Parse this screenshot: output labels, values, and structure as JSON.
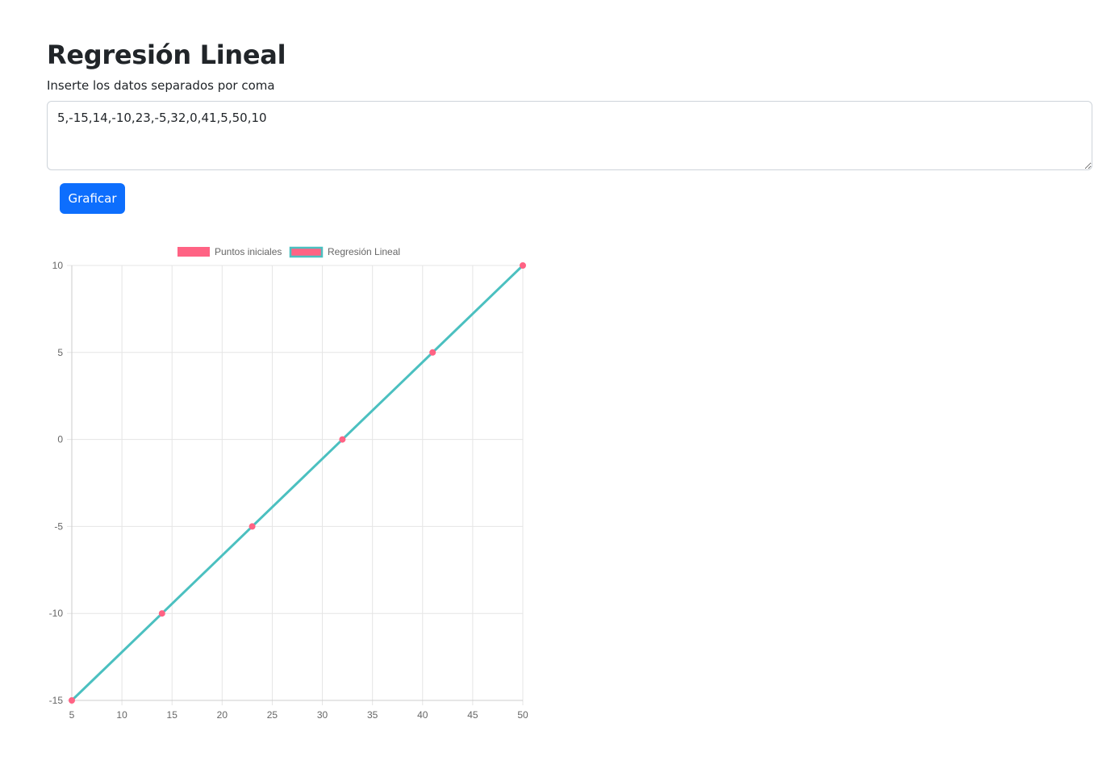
{
  "page": {
    "title": "Regresión Lineal",
    "instructions": "Inserte los datos separados por coma"
  },
  "input": {
    "value": "5,-15,14,-10,23,-5,32,0,41,5,50,10"
  },
  "button": {
    "label": "Graficar",
    "color": "#0d6efd"
  },
  "chart_data": {
    "type": "scatter",
    "legend_position": "top",
    "grid": true,
    "xlim": [
      5,
      50
    ],
    "ylim": [
      -15,
      10
    ],
    "xticks": [
      5,
      10,
      15,
      20,
      25,
      30,
      35,
      40,
      45,
      50
    ],
    "yticks": [
      10,
      5,
      0,
      -5,
      -10,
      -15
    ],
    "series": [
      {
        "name": "Puntos iniciales",
        "kind": "points",
        "color": "#ff6384",
        "points": [
          [
            5,
            -15
          ],
          [
            14,
            -10
          ],
          [
            23,
            -5
          ],
          [
            32,
            0
          ],
          [
            41,
            5
          ],
          [
            50,
            10
          ]
        ]
      },
      {
        "name": "Regresión Lineal",
        "kind": "line",
        "color": "#4bc0c0",
        "fill_color": "#ff6384",
        "points": [
          [
            5,
            -15
          ],
          [
            50,
            10
          ]
        ]
      }
    ]
  }
}
